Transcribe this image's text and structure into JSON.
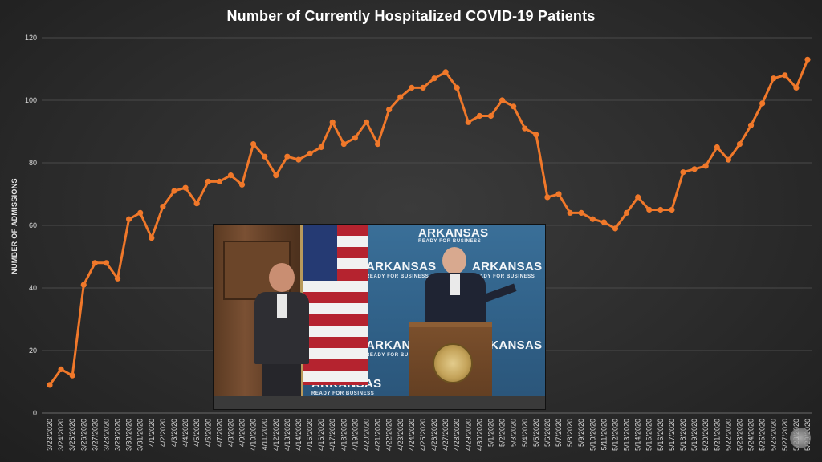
{
  "chart_data": {
    "type": "line",
    "title": "Number of Currently Hospitalized COVID-19 Patients",
    "xlabel": "",
    "ylabel": "NUMBER OF ADMISSIONS",
    "ylim": [
      0,
      120
    ],
    "yticks": [
      0,
      20,
      40,
      60,
      80,
      100,
      120
    ],
    "grid": true,
    "line_color": "#f0782a",
    "x": [
      "3/23/2020",
      "3/24/2020",
      "3/25/2020",
      "3/26/2020",
      "3/27/2020",
      "3/28/2020",
      "3/29/2020",
      "3/30/2020",
      "3/31/2020",
      "4/1/2020",
      "4/2/2020",
      "4/3/2020",
      "4/4/2020",
      "4/5/2020",
      "4/6/2020",
      "4/7/2020",
      "4/8/2020",
      "4/9/2020",
      "4/10/2020",
      "4/11/2020",
      "4/12/2020",
      "4/13/2020",
      "4/14/2020",
      "4/15/2020",
      "4/16/2020",
      "4/17/2020",
      "4/18/2020",
      "4/19/2020",
      "4/20/2020",
      "4/21/2020",
      "4/22/2020",
      "4/23/2020",
      "4/24/2020",
      "4/25/2020",
      "4/26/2020",
      "4/27/2020",
      "4/28/2020",
      "4/29/2020",
      "4/30/2020",
      "5/1/2020",
      "5/2/2020",
      "5/3/2020",
      "5/4/2020",
      "5/5/2020",
      "5/6/2020",
      "5/7/2020",
      "5/8/2020",
      "5/9/2020",
      "5/10/2020",
      "5/11/2020",
      "5/12/2020",
      "5/13/2020",
      "5/14/2020",
      "5/15/2020",
      "5/16/2020",
      "5/17/2020",
      "5/18/2020",
      "5/19/2020",
      "5/20/2020",
      "5/21/2020",
      "5/22/2020",
      "5/23/2020",
      "5/24/2020",
      "5/25/2020",
      "5/26/2020",
      "5/27/2020",
      "5/28/2020",
      "5/29/2020"
    ],
    "xtick_labels": [
      "3/23/2020",
      "3/24/2020",
      "3/25/2020",
      "3/26/2020",
      "3/27/2020",
      "3/28/2020",
      "3/29/2020",
      "3/30/2020",
      "3/31/2020",
      "4/1/2020",
      "4/2/2020",
      "4/3/2020",
      "4/4/2020",
      "4/5/2020",
      "4/6/2020",
      "4/7/2020",
      "4/8/2020",
      "4/9/2020",
      "4/10/2020",
      "4/11/2020",
      "4/12/2020",
      "4/13/2020",
      "4/14/2020",
      "4/15/2020",
      "4/16/2020",
      "4/17/2020",
      "4/18/2020",
      "4/19/2020",
      "4/20/2020",
      "4/21/2020",
      "4/22/2020",
      "4/23/2020",
      "4/24/2020",
      "4/25/2020",
      "4/26/2020",
      "4/27/2020",
      "4/28/2020",
      "4/29/2020",
      "4/30/2020",
      "5/1/2020",
      "5/2/2020",
      "5/3/2020",
      "5/4/2020",
      "5/5/2020",
      "5/6/2020",
      "5/7/2020",
      "5/8/2020",
      "5/9/2020",
      "5/10/2020",
      "5/11/2020",
      "5/12/2020",
      "5/13/2020",
      "5/14/2020",
      "5/15/2020",
      "5/16/2020",
      "5/17/2020",
      "5/18/2020",
      "5/19/2020",
      "5/20/2020",
      "5/21/2020",
      "5/22/2020",
      "5/23/2020",
      "5/24/2020",
      "5/25/2020",
      "5/26/2020",
      "5/27/2020",
      "5/28/2020",
      "5/29/2020"
    ],
    "values": [
      9,
      14,
      12,
      41,
      48,
      48,
      43,
      62,
      64,
      56,
      66,
      71,
      72,
      67,
      74,
      74,
      76,
      73,
      86,
      82,
      76,
      82,
      81,
      83,
      85,
      93,
      86,
      88,
      93,
      86,
      97,
      101,
      104,
      104,
      107,
      109,
      104,
      93,
      95,
      95,
      100,
      98,
      91,
      89,
      69,
      70,
      64,
      64,
      62,
      61,
      59,
      64,
      69,
      65,
      65,
      65,
      77,
      78,
      79,
      85,
      81,
      86,
      92,
      99,
      107,
      108,
      104,
      113
    ]
  },
  "inset": {
    "banner_brand": "ARKANSAS",
    "banner_tagline": "READY FOR BUSINESS"
  }
}
